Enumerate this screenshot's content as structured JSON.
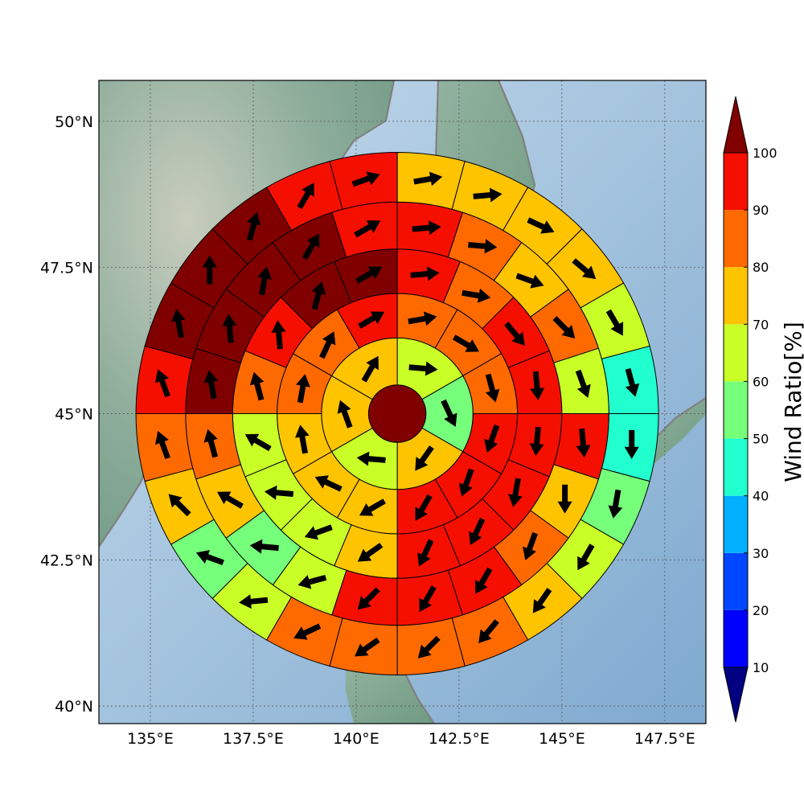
{
  "chart_data": {
    "type": "heatmap",
    "title": "",
    "xlabel": "",
    "ylabel": "",
    "map": {
      "lon_range": [
        133.75,
        148.5
      ],
      "lat_range": [
        39.7,
        50.7
      ],
      "center": {
        "lon": 141.0,
        "lat": 45.0
      },
      "grid": true,
      "coastline_color": "#808080",
      "land_color": "#6f9a82",
      "ocean_color": "#a9c8e2",
      "x_ticks": [
        "135°E",
        "137.5°E",
        "140°E",
        "142.5°E",
        "145°E",
        "147.5°E"
      ],
      "x_tick_values": [
        135,
        137.5,
        140,
        142.5,
        145,
        147.5
      ],
      "y_ticks": [
        "40°N",
        "42.5°N",
        "45°N",
        "47.5°N",
        "50°N"
      ],
      "y_tick_values": [
        40,
        42.5,
        45,
        47.5,
        50
      ]
    },
    "colorbar": {
      "label": "Wind Ratio[%]",
      "ticks": [
        "10",
        "20",
        "30",
        "40",
        "50",
        "60",
        "70",
        "80",
        "90",
        "100"
      ],
      "tick_values": [
        10,
        20,
        30,
        40,
        50,
        60,
        70,
        80,
        90,
        100
      ],
      "colors": [
        "#0000ff",
        "#0048ff",
        "#00b0ff",
        "#22ffcf",
        "#76ff7a",
        "#c9ff27",
        "#ffc400",
        "#ff6a00",
        "#f50f00"
      ],
      "under_color": "#000080",
      "over_color": "#800000",
      "extend": "both",
      "position": "right"
    },
    "rings": [
      {
        "ring": 0,
        "r_inner_deg": 0,
        "r_outer_deg": 0.55,
        "sectors": [
          {
            "start_deg": 0,
            "end_deg": 360,
            "value": 105,
            "wind_dir_deg": null
          }
        ]
      },
      {
        "ring": 1,
        "r_inner_deg": 0.55,
        "r_outer_deg": 1.45,
        "sectors": [
          {
            "start_deg": 0,
            "end_deg": 60,
            "value": 65,
            "wind_dir_deg": 95
          },
          {
            "start_deg": 60,
            "end_deg": 120,
            "value": 55,
            "wind_dir_deg": 155
          },
          {
            "start_deg": 120,
            "end_deg": 180,
            "value": 75,
            "wind_dir_deg": 215
          },
          {
            "start_deg": 180,
            "end_deg": 240,
            "value": 65,
            "wind_dir_deg": 275
          },
          {
            "start_deg": 240,
            "end_deg": 300,
            "value": 75,
            "wind_dir_deg": 340
          },
          {
            "start_deg": 300,
            "end_deg": 360,
            "value": 75,
            "wind_dir_deg": 30
          }
        ]
      },
      {
        "ring": 2,
        "r_inner_deg": 1.45,
        "r_outer_deg": 2.3,
        "sectors": [
          {
            "start_deg": 0,
            "end_deg": 30,
            "value": 85,
            "wind_dir_deg": 80
          },
          {
            "start_deg": 30,
            "end_deg": 60,
            "value": 85,
            "wind_dir_deg": 120
          },
          {
            "start_deg": 60,
            "end_deg": 90,
            "value": 85,
            "wind_dir_deg": 165
          },
          {
            "start_deg": 90,
            "end_deg": 120,
            "value": 95,
            "wind_dir_deg": 200
          },
          {
            "start_deg": 120,
            "end_deg": 150,
            "value": 95,
            "wind_dir_deg": 200
          },
          {
            "start_deg": 150,
            "end_deg": 180,
            "value": 95,
            "wind_dir_deg": 210
          },
          {
            "start_deg": 180,
            "end_deg": 210,
            "value": 75,
            "wind_dir_deg": 240
          },
          {
            "start_deg": 210,
            "end_deg": 240,
            "value": 75,
            "wind_dir_deg": 295
          },
          {
            "start_deg": 240,
            "end_deg": 270,
            "value": 75,
            "wind_dir_deg": 350
          },
          {
            "start_deg": 270,
            "end_deg": 300,
            "value": 85,
            "wind_dir_deg": 10
          },
          {
            "start_deg": 300,
            "end_deg": 330,
            "value": 85,
            "wind_dir_deg": 25
          },
          {
            "start_deg": 330,
            "end_deg": 360,
            "value": 95,
            "wind_dir_deg": 60
          }
        ]
      },
      {
        "ring": 3,
        "r_inner_deg": 2.3,
        "r_outer_deg": 3.15,
        "sectors": [
          {
            "start_deg": 0,
            "end_deg": 22.5,
            "value": 95,
            "wind_dir_deg": 85
          },
          {
            "start_deg": 22.5,
            "end_deg": 45,
            "value": 85,
            "wind_dir_deg": 100
          },
          {
            "start_deg": 45,
            "end_deg": 67.5,
            "value": 95,
            "wind_dir_deg": 140
          },
          {
            "start_deg": 67.5,
            "end_deg": 90,
            "value": 95,
            "wind_dir_deg": 175
          },
          {
            "start_deg": 90,
            "end_deg": 112.5,
            "value": 95,
            "wind_dir_deg": 185
          },
          {
            "start_deg": 112.5,
            "end_deg": 135,
            "value": 95,
            "wind_dir_deg": 190
          },
          {
            "start_deg": 135,
            "end_deg": 157.5,
            "value": 95,
            "wind_dir_deg": 205
          },
          {
            "start_deg": 157.5,
            "end_deg": 180,
            "value": 95,
            "wind_dir_deg": 205
          },
          {
            "start_deg": 180,
            "end_deg": 202.5,
            "value": 75,
            "wind_dir_deg": 235
          },
          {
            "start_deg": 202.5,
            "end_deg": 225,
            "value": 65,
            "wind_dir_deg": 250
          },
          {
            "start_deg": 225,
            "end_deg": 247.5,
            "value": 65,
            "wind_dir_deg": 275
          },
          {
            "start_deg": 247.5,
            "end_deg": 270,
            "value": 65,
            "wind_dir_deg": 300
          },
          {
            "start_deg": 270,
            "end_deg": 292.5,
            "value": 85,
            "wind_dir_deg": 345
          },
          {
            "start_deg": 292.5,
            "end_deg": 315,
            "value": 95,
            "wind_dir_deg": 355
          },
          {
            "start_deg": 315,
            "end_deg": 337.5,
            "value": 105,
            "wind_dir_deg": 15
          },
          {
            "start_deg": 337.5,
            "end_deg": 360,
            "value": 105,
            "wind_dir_deg": 60
          }
        ]
      },
      {
        "ring": 4,
        "r_inner_deg": 3.15,
        "r_outer_deg": 4.05,
        "sectors": [
          {
            "start_deg": 0,
            "end_deg": 18,
            "value": 95,
            "wind_dir_deg": 85
          },
          {
            "start_deg": 18,
            "end_deg": 36,
            "value": 85,
            "wind_dir_deg": 95
          },
          {
            "start_deg": 36,
            "end_deg": 54,
            "value": 75,
            "wind_dir_deg": 110
          },
          {
            "start_deg": 54,
            "end_deg": 72,
            "value": 85,
            "wind_dir_deg": 135
          },
          {
            "start_deg": 72,
            "end_deg": 90,
            "value": 65,
            "wind_dir_deg": 160
          },
          {
            "start_deg": 90,
            "end_deg": 108,
            "value": 95,
            "wind_dir_deg": 175
          },
          {
            "start_deg": 108,
            "end_deg": 126,
            "value": 75,
            "wind_dir_deg": 180
          },
          {
            "start_deg": 126,
            "end_deg": 144,
            "value": 85,
            "wind_dir_deg": 200
          },
          {
            "start_deg": 144,
            "end_deg": 162,
            "value": 95,
            "wind_dir_deg": 210
          },
          {
            "start_deg": 162,
            "end_deg": 180,
            "value": 95,
            "wind_dir_deg": 210
          },
          {
            "start_deg": 180,
            "end_deg": 198,
            "value": 95,
            "wind_dir_deg": 225
          },
          {
            "start_deg": 198,
            "end_deg": 216,
            "value": 65,
            "wind_dir_deg": 255
          },
          {
            "start_deg": 216,
            "end_deg": 234,
            "value": 55,
            "wind_dir_deg": 275
          },
          {
            "start_deg": 234,
            "end_deg": 252,
            "value": 75,
            "wind_dir_deg": 300
          },
          {
            "start_deg": 252,
            "end_deg": 270,
            "value": 85,
            "wind_dir_deg": 345
          },
          {
            "start_deg": 270,
            "end_deg": 288,
            "value": 105,
            "wind_dir_deg": 350
          },
          {
            "start_deg": 288,
            "end_deg": 306,
            "value": 105,
            "wind_dir_deg": 355
          },
          {
            "start_deg": 306,
            "end_deg": 324,
            "value": 105,
            "wind_dir_deg": 10
          },
          {
            "start_deg": 324,
            "end_deg": 342,
            "value": 105,
            "wind_dir_deg": 30
          },
          {
            "start_deg": 342,
            "end_deg": 360,
            "value": 95,
            "wind_dir_deg": 60
          }
        ]
      },
      {
        "ring": 5,
        "r_inner_deg": 4.05,
        "r_outer_deg": 5.0,
        "sectors": [
          {
            "start_deg": 0,
            "end_deg": 15,
            "value": 75,
            "wind_dir_deg": 80
          },
          {
            "start_deg": 15,
            "end_deg": 30,
            "value": 75,
            "wind_dir_deg": 85
          },
          {
            "start_deg": 30,
            "end_deg": 45,
            "value": 75,
            "wind_dir_deg": 115
          },
          {
            "start_deg": 45,
            "end_deg": 60,
            "value": 75,
            "wind_dir_deg": 130
          },
          {
            "start_deg": 60,
            "end_deg": 75,
            "value": 65,
            "wind_dir_deg": 150
          },
          {
            "start_deg": 75,
            "end_deg": 90,
            "value": 45,
            "wind_dir_deg": 165
          },
          {
            "start_deg": 90,
            "end_deg": 105,
            "value": 45,
            "wind_dir_deg": 180
          },
          {
            "start_deg": 105,
            "end_deg": 120,
            "value": 55,
            "wind_dir_deg": 190
          },
          {
            "start_deg": 120,
            "end_deg": 135,
            "value": 65,
            "wind_dir_deg": 210
          },
          {
            "start_deg": 135,
            "end_deg": 150,
            "value": 75,
            "wind_dir_deg": 215
          },
          {
            "start_deg": 150,
            "end_deg": 165,
            "value": 85,
            "wind_dir_deg": 220
          },
          {
            "start_deg": 165,
            "end_deg": 180,
            "value": 85,
            "wind_dir_deg": 225
          },
          {
            "start_deg": 180,
            "end_deg": 195,
            "value": 85,
            "wind_dir_deg": 235
          },
          {
            "start_deg": 195,
            "end_deg": 210,
            "value": 85,
            "wind_dir_deg": 245
          },
          {
            "start_deg": 210,
            "end_deg": 225,
            "value": 65,
            "wind_dir_deg": 265
          },
          {
            "start_deg": 225,
            "end_deg": 240,
            "value": 55,
            "wind_dir_deg": 290
          },
          {
            "start_deg": 240,
            "end_deg": 255,
            "value": 75,
            "wind_dir_deg": 315
          },
          {
            "start_deg": 255,
            "end_deg": 270,
            "value": 85,
            "wind_dir_deg": 340
          },
          {
            "start_deg": 270,
            "end_deg": 285,
            "value": 95,
            "wind_dir_deg": 340
          },
          {
            "start_deg": 285,
            "end_deg": 300,
            "value": 105,
            "wind_dir_deg": 350
          },
          {
            "start_deg": 300,
            "end_deg": 315,
            "value": 105,
            "wind_dir_deg": 360
          },
          {
            "start_deg": 315,
            "end_deg": 330,
            "value": 105,
            "wind_dir_deg": 15
          },
          {
            "start_deg": 330,
            "end_deg": 345,
            "value": 95,
            "wind_dir_deg": 30
          },
          {
            "start_deg": 345,
            "end_deg": 360,
            "value": 95,
            "wind_dir_deg": 70
          }
        ]
      }
    ]
  }
}
